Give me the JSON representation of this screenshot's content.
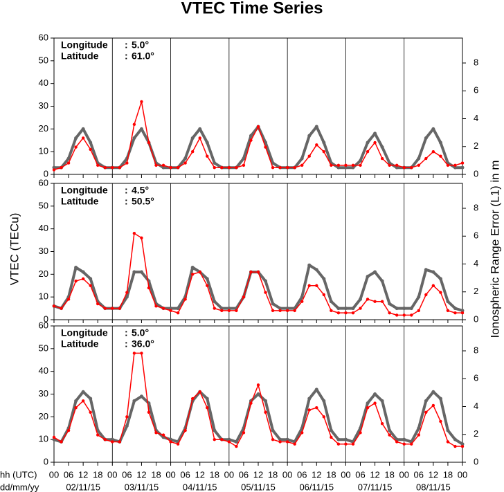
{
  "figure": {
    "title": "VTEC Time Series",
    "ylabel": "VTEC (TECu)",
    "y2label": "Ionospheric Range Error (L1) in m",
    "xlabel": [
      "hh (UTC)",
      "dd/mm/yy"
    ]
  },
  "chart_data": [
    {
      "type": "line",
      "info": [
        [
          "Longitude",
          ":",
          "5.0°"
        ],
        [
          "Latitude",
          ":",
          "61.0°"
        ]
      ],
      "xlim": [
        0,
        168
      ],
      "ylim": [
        0,
        60
      ],
      "yticks": [
        0,
        10,
        20,
        30,
        40,
        50,
        60
      ],
      "y2lim": [
        0,
        9.79
      ],
      "y2ticks": [
        0,
        2,
        4,
        6,
        8
      ],
      "x": [
        0,
        3,
        6,
        9,
        12,
        15,
        18,
        21,
        24,
        27,
        30,
        33,
        36,
        39,
        42,
        45,
        48,
        51,
        54,
        57,
        60,
        63,
        66,
        69,
        72,
        75,
        78,
        81,
        84,
        87,
        90,
        93,
        96,
        99,
        102,
        105,
        108,
        111,
        114,
        117,
        120,
        123,
        126,
        129,
        132,
        135,
        138,
        141,
        144,
        147,
        150,
        153,
        156,
        159,
        162,
        165,
        168
      ],
      "series": [
        {
          "color": "#666666",
          "values": [
            3,
            3,
            7,
            16,
            20,
            14,
            5,
            3,
            3,
            3,
            7,
            16,
            20,
            14,
            5,
            3,
            3,
            3,
            7,
            16,
            20,
            14,
            5,
            3,
            3,
            3,
            7,
            17,
            21,
            14,
            5,
            3,
            3,
            3,
            7,
            17,
            21,
            14,
            5,
            3,
            3,
            3,
            6,
            14,
            18,
            12,
            5,
            3,
            3,
            3,
            7,
            16,
            20,
            14,
            5,
            3,
            3
          ]
        },
        {
          "color": "#ff0000",
          "values": [
            2,
            3,
            5,
            12,
            16,
            11,
            4,
            3,
            3,
            3,
            5,
            22,
            32,
            14,
            4,
            4,
            3,
            3,
            5,
            10,
            16,
            8,
            3,
            3,
            3,
            3,
            4,
            15,
            21,
            12,
            3,
            3,
            3,
            3,
            4,
            8,
            13,
            10,
            4,
            4,
            4,
            4,
            4,
            10,
            14,
            7,
            4,
            4,
            3,
            3,
            4,
            7,
            10,
            8,
            4,
            4,
            5
          ]
        }
      ]
    },
    {
      "type": "line",
      "info": [
        [
          "Longitude",
          ":",
          "4.5°"
        ],
        [
          "Latitude",
          ":",
          "50.5°"
        ]
      ],
      "xlim": [
        0,
        168
      ],
      "ylim": [
        0,
        60
      ],
      "yticks": [
        0,
        10,
        20,
        30,
        40,
        50,
        60
      ],
      "y2lim": [
        0,
        9.79
      ],
      "y2ticks": [
        0,
        2,
        4,
        6,
        8
      ],
      "x": [
        0,
        3,
        6,
        9,
        12,
        15,
        18,
        21,
        24,
        27,
        30,
        33,
        36,
        39,
        42,
        45,
        48,
        51,
        54,
        57,
        60,
        63,
        66,
        69,
        72,
        75,
        78,
        81,
        84,
        87,
        90,
        93,
        96,
        99,
        102,
        105,
        108,
        111,
        114,
        117,
        120,
        123,
        126,
        129,
        132,
        135,
        138,
        141,
        144,
        147,
        150,
        153,
        156,
        159,
        162,
        165,
        168
      ],
      "series": [
        {
          "color": "#666666",
          "values": [
            6,
            5,
            10,
            23,
            21,
            18,
            8,
            5,
            5,
            5,
            10,
            21,
            21,
            17,
            7,
            5,
            5,
            5,
            10,
            23,
            21,
            18,
            8,
            5,
            5,
            5,
            10,
            21,
            21,
            17,
            7,
            5,
            5,
            5,
            10,
            24,
            22,
            18,
            8,
            5,
            5,
            5,
            9,
            19,
            21,
            17,
            7,
            5,
            5,
            5,
            10,
            22,
            21,
            18,
            8,
            5,
            4
          ]
        },
        {
          "color": "#ff0000",
          "values": [
            6,
            5,
            9,
            17,
            18,
            15,
            7,
            5,
            5,
            5,
            12,
            38,
            36,
            14,
            6,
            5,
            4,
            3,
            9,
            20,
            21,
            15,
            5,
            4,
            4,
            4,
            10,
            21,
            21,
            12,
            4,
            4,
            4,
            4,
            8,
            15,
            15,
            11,
            4,
            3,
            3,
            3,
            5,
            9,
            8,
            8,
            3,
            2,
            2,
            2,
            4,
            11,
            15,
            12,
            4,
            3,
            3
          ]
        }
      ]
    },
    {
      "type": "line",
      "info": [
        [
          "Longitude",
          ":",
          "5.0°"
        ],
        [
          "Latitude",
          ":",
          "36.0°"
        ]
      ],
      "xlim": [
        0,
        168
      ],
      "ylim": [
        0,
        60
      ],
      "yticks": [
        0,
        10,
        20,
        30,
        40,
        50,
        60
      ],
      "y2lim": [
        0,
        9.79
      ],
      "y2ticks": [
        0,
        2,
        4,
        6,
        8
      ],
      "xticks": [
        {
          "value": 0,
          "label": "00"
        },
        {
          "value": 6,
          "label": "06"
        },
        {
          "value": 12,
          "label": "12"
        },
        {
          "value": 18,
          "label": "18"
        },
        {
          "value": 24,
          "label": "00"
        },
        {
          "value": 30,
          "label": "06"
        },
        {
          "value": 36,
          "label": "12"
        },
        {
          "value": 42,
          "label": "18"
        },
        {
          "value": 48,
          "label": "00"
        },
        {
          "value": 54,
          "label": "06"
        },
        {
          "value": 60,
          "label": "12"
        },
        {
          "value": 66,
          "label": "18"
        },
        {
          "value": 72,
          "label": "00"
        },
        {
          "value": 78,
          "label": "06"
        },
        {
          "value": 84,
          "label": "12"
        },
        {
          "value": 90,
          "label": "18"
        },
        {
          "value": 96,
          "label": "00"
        },
        {
          "value": 102,
          "label": "06"
        },
        {
          "value": 108,
          "label": "12"
        },
        {
          "value": 114,
          "label": "18"
        },
        {
          "value": 120,
          "label": "00"
        },
        {
          "value": 126,
          "label": "06"
        },
        {
          "value": 132,
          "label": "12"
        },
        {
          "value": 138,
          "label": "18"
        },
        {
          "value": 144,
          "label": "00"
        },
        {
          "value": 150,
          "label": "06"
        },
        {
          "value": 156,
          "label": "12"
        },
        {
          "value": 162,
          "label": "18"
        },
        {
          "value": 168,
          "label": "00"
        }
      ],
      "day_labels": [
        {
          "value": 12,
          "label": "02/11/15"
        },
        {
          "value": 36,
          "label": "03/11/15"
        },
        {
          "value": 60,
          "label": "04/11/15"
        },
        {
          "value": 84,
          "label": "05/11/15"
        },
        {
          "value": 108,
          "label": "06/11/15"
        },
        {
          "value": 132,
          "label": "07/11/15"
        },
        {
          "value": 156,
          "label": "08/11/15"
        }
      ],
      "x": [
        0,
        3,
        6,
        9,
        12,
        15,
        18,
        21,
        24,
        27,
        30,
        33,
        36,
        39,
        42,
        45,
        48,
        51,
        54,
        57,
        60,
        63,
        66,
        69,
        72,
        75,
        78,
        81,
        84,
        87,
        90,
        93,
        96,
        99,
        102,
        105,
        108,
        111,
        114,
        117,
        120,
        123,
        126,
        129,
        132,
        135,
        138,
        141,
        144,
        147,
        150,
        153,
        156,
        159,
        162,
        165,
        168
      ],
      "series": [
        {
          "color": "#666666",
          "values": [
            10,
            9,
            15,
            27,
            31,
            28,
            14,
            10,
            10,
            9,
            16,
            27,
            29,
            26,
            14,
            11,
            10,
            9,
            15,
            27,
            31,
            28,
            14,
            10,
            10,
            9,
            15,
            27,
            30,
            27,
            14,
            10,
            10,
            9,
            15,
            28,
            32,
            27,
            14,
            10,
            10,
            9,
            15,
            26,
            30,
            27,
            14,
            10,
            10,
            9,
            15,
            27,
            31,
            28,
            14,
            10,
            8
          ]
        },
        {
          "color": "#ff0000",
          "values": [
            11,
            9,
            14,
            24,
            27,
            22,
            12,
            10,
            9,
            9,
            20,
            48,
            48,
            22,
            13,
            12,
            9,
            8,
            14,
            28,
            31,
            24,
            10,
            10,
            9,
            7,
            13,
            26,
            34,
            22,
            10,
            9,
            9,
            8,
            13,
            23,
            24,
            20,
            11,
            8,
            8,
            8,
            13,
            24,
            26,
            17,
            12,
            9,
            8,
            8,
            12,
            22,
            25,
            18,
            9,
            7,
            7
          ]
        }
      ]
    }
  ]
}
